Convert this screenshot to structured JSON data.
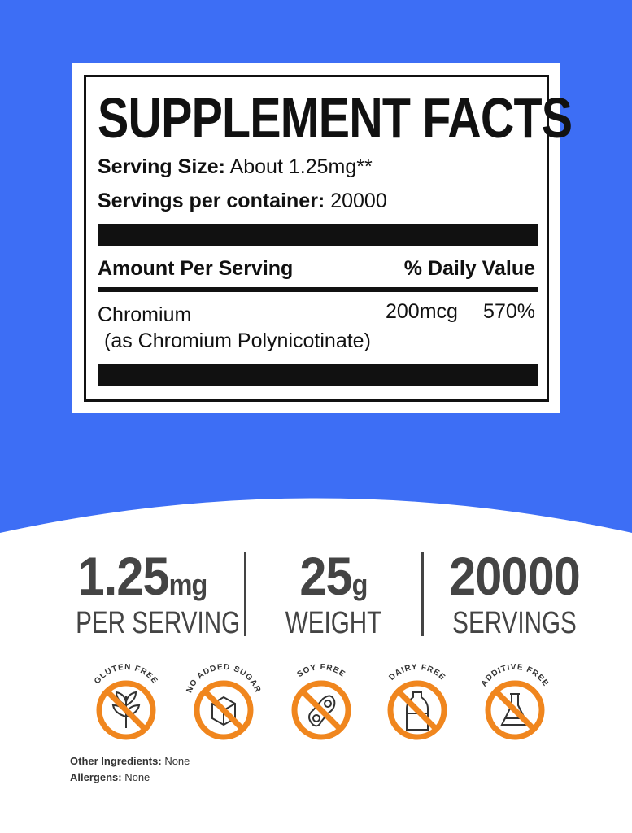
{
  "colors": {
    "background": "#3d6ef5",
    "badge": "#f0861e",
    "text": "#444444"
  },
  "facts": {
    "title": "SUPPLEMENT FACTS",
    "serving_size_label": "Serving Size:",
    "serving_size_value": "About 1.25mg**",
    "servings_label": "Servings per container:",
    "servings_value": "20000",
    "amount_header": "Amount Per Serving",
    "dv_header": "% Daily Value",
    "ingredient": "Chromium",
    "ingredient_form": "(as Chromium Polynicotinate)",
    "ingredient_amount": "200mcg",
    "ingredient_dv": "570%"
  },
  "stats": [
    {
      "value": "1.25",
      "unit": "mg",
      "label": "PER SERVING"
    },
    {
      "value": "25",
      "unit": "g",
      "label": "WEIGHT"
    },
    {
      "value": "20000",
      "unit": "",
      "label": "SERVINGS"
    }
  ],
  "badges": [
    {
      "label": "GLUTEN FREE",
      "icon": "wheat-icon"
    },
    {
      "label": "NO ADDED SUGAR",
      "icon": "sugar-cube-icon"
    },
    {
      "label": "SOY FREE",
      "icon": "soybean-icon"
    },
    {
      "label": "DAIRY FREE",
      "icon": "milk-bottle-icon"
    },
    {
      "label": "ADDITIVE FREE",
      "icon": "flask-icon"
    }
  ],
  "footer": {
    "other_label": "Other Ingredients:",
    "other_value": "None",
    "allergens_label": "Allergens:",
    "allergens_value": "None"
  }
}
